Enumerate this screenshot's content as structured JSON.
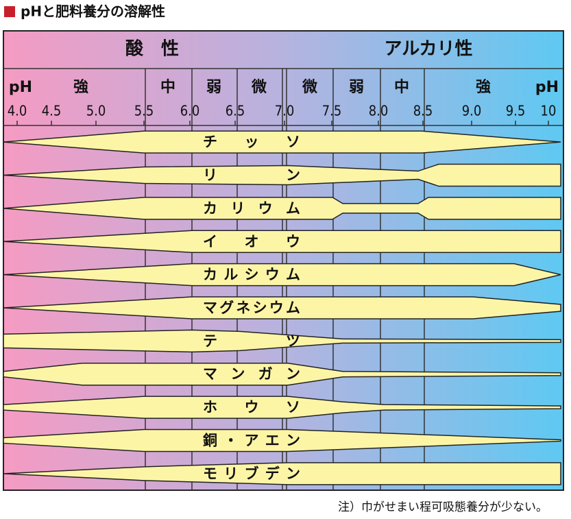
{
  "header": {
    "title": "pHと肥料養分の溶解性"
  },
  "zones": {
    "acid": "酸　性",
    "alkali": "アルカリ性"
  },
  "strength": [
    "pH",
    "強",
    "中",
    "弱",
    "微",
    "微",
    "弱",
    "中",
    "強",
    "pH"
  ],
  "ph_ticks": [
    "4.0",
    "4.5",
    "5.0",
    "5.5",
    "6.0",
    "6.5",
    "7.0",
    "7.5",
    "8.0",
    "8.5",
    "9.0",
    "9.5",
    "10"
  ],
  "nutrients": [
    "チッソ",
    "リン",
    "カリウム",
    "イオウ",
    "カルシウム",
    "マグネシウム",
    "テツ",
    "マンガン",
    "ホウソ",
    "銅・アエン",
    "モリブデン"
  ],
  "note": "注）巾がせまい程可吸態養分が少ない。"
}
